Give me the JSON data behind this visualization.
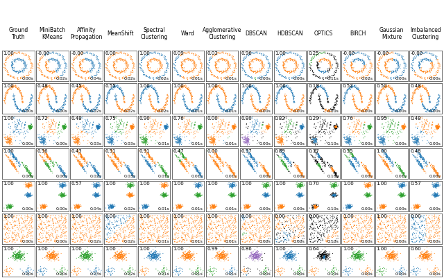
{
  "col_labels": [
    "Ground\nTruth",
    "MiniBatch\nKMeans",
    "Affinity\nPropagation",
    "MeanShift",
    "Spectral\nClustering",
    "Ward",
    "Agglomerative\nClustering",
    "DBSCAN",
    "HDBSCAN",
    "OPTICS",
    "BIRCH",
    "Gaussian\nMixture",
    "Imbalanced\nClustering"
  ],
  "n_cols": 13,
  "n_rows": 7,
  "fig_width": 6.4,
  "fig_height": 4.01,
  "background": "#ffffff",
  "palette": [
    "#ff7f0e",
    "#1f77b4",
    "#2ca02c",
    "#9467bd",
    "#8c564b",
    "#e377c2"
  ],
  "noise_color": "#000000",
  "label_fontsize": 5.5,
  "score_fontsize": 5.0,
  "time_fontsize": 4.5
}
